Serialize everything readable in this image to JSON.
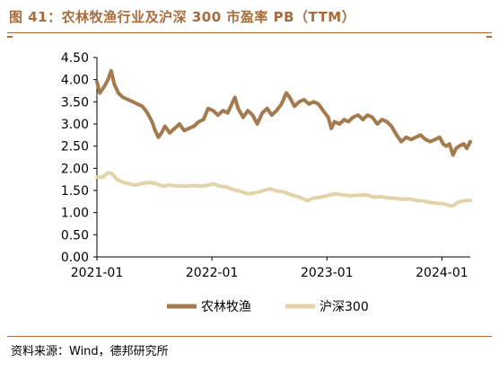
{
  "figure": {
    "title": "图 41：农林牧渔行业及沪深 300 市盈率 PB（TTM）",
    "source": "资料来源：Wind，德邦研究所"
  },
  "colors": {
    "accent": "#a86c3a",
    "series_1": "#a47a4f",
    "series_2": "#e3d3a8"
  },
  "chart_data": {
    "type": "line",
    "title": "",
    "xlabel": "",
    "ylabel": "",
    "x_range": [
      "2021-01-01",
      "2024-03-31"
    ],
    "ylim": [
      0,
      4.5
    ],
    "y_ticks": [
      "0.00",
      "0.50",
      "1.00",
      "1.50",
      "2.00",
      "2.50",
      "3.00",
      "3.50",
      "4.00",
      "4.50"
    ],
    "x_ticks": [
      {
        "label": "2021-01",
        "date": "2021-01-01"
      },
      {
        "label": "2022-01",
        "date": "2022-01-01"
      },
      {
        "label": "2023-01",
        "date": "2023-01-01"
      },
      {
        "label": "2024-01",
        "date": "2024-01-01"
      }
    ],
    "grid": false,
    "legend_position": "bottom-center",
    "series": [
      {
        "name": "农林牧渔",
        "points": [
          [
            "2021-01-01",
            3.95
          ],
          [
            "2021-01-10",
            3.7
          ],
          [
            "2021-01-25",
            3.85
          ],
          [
            "2021-02-05",
            4.0
          ],
          [
            "2021-02-15",
            4.2
          ],
          [
            "2021-02-25",
            3.9
          ],
          [
            "2021-03-10",
            3.7
          ],
          [
            "2021-03-25",
            3.6
          ],
          [
            "2021-04-10",
            3.55
          ],
          [
            "2021-04-25",
            3.5
          ],
          [
            "2021-05-10",
            3.45
          ],
          [
            "2021-05-25",
            3.4
          ],
          [
            "2021-06-10",
            3.25
          ],
          [
            "2021-06-25",
            3.05
          ],
          [
            "2021-07-05",
            2.85
          ],
          [
            "2021-07-15",
            2.7
          ],
          [
            "2021-07-25",
            2.8
          ],
          [
            "2021-08-05",
            2.95
          ],
          [
            "2021-08-20",
            2.8
          ],
          [
            "2021-09-05",
            2.9
          ],
          [
            "2021-09-20",
            3.0
          ],
          [
            "2021-10-05",
            2.85
          ],
          [
            "2021-10-20",
            2.9
          ],
          [
            "2021-11-05",
            2.95
          ],
          [
            "2021-11-20",
            3.05
          ],
          [
            "2021-12-05",
            3.1
          ],
          [
            "2021-12-20",
            3.35
          ],
          [
            "2022-01-05",
            3.3
          ],
          [
            "2022-01-20",
            3.2
          ],
          [
            "2022-02-05",
            3.3
          ],
          [
            "2022-02-20",
            3.25
          ],
          [
            "2022-03-05",
            3.45
          ],
          [
            "2022-03-15",
            3.6
          ],
          [
            "2022-03-25",
            3.35
          ],
          [
            "2022-04-10",
            3.15
          ],
          [
            "2022-04-25",
            3.3
          ],
          [
            "2022-05-10",
            3.2
          ],
          [
            "2022-05-25",
            3.0
          ],
          [
            "2022-06-10",
            3.25
          ],
          [
            "2022-06-25",
            3.35
          ],
          [
            "2022-07-10",
            3.2
          ],
          [
            "2022-07-25",
            3.3
          ],
          [
            "2022-08-10",
            3.45
          ],
          [
            "2022-08-25",
            3.7
          ],
          [
            "2022-09-05",
            3.6
          ],
          [
            "2022-09-20",
            3.4
          ],
          [
            "2022-10-05",
            3.5
          ],
          [
            "2022-10-20",
            3.55
          ],
          [
            "2022-11-05",
            3.45
          ],
          [
            "2022-11-20",
            3.5
          ],
          [
            "2022-12-05",
            3.45
          ],
          [
            "2022-12-20",
            3.3
          ],
          [
            "2023-01-05",
            3.15
          ],
          [
            "2023-01-15",
            2.9
          ],
          [
            "2023-01-25",
            3.05
          ],
          [
            "2023-02-10",
            3.0
          ],
          [
            "2023-02-25",
            3.1
          ],
          [
            "2023-03-10",
            3.05
          ],
          [
            "2023-03-25",
            3.15
          ],
          [
            "2023-04-10",
            3.2
          ],
          [
            "2023-04-25",
            3.1
          ],
          [
            "2023-05-10",
            3.2
          ],
          [
            "2023-05-25",
            3.15
          ],
          [
            "2023-06-10",
            3.0
          ],
          [
            "2023-06-25",
            3.1
          ],
          [
            "2023-07-10",
            3.05
          ],
          [
            "2023-07-25",
            2.95
          ],
          [
            "2023-08-10",
            2.75
          ],
          [
            "2023-08-25",
            2.6
          ],
          [
            "2023-09-10",
            2.7
          ],
          [
            "2023-09-25",
            2.65
          ],
          [
            "2023-10-10",
            2.7
          ],
          [
            "2023-10-25",
            2.75
          ],
          [
            "2023-11-10",
            2.65
          ],
          [
            "2023-11-25",
            2.6
          ],
          [
            "2023-12-10",
            2.65
          ],
          [
            "2023-12-25",
            2.7
          ],
          [
            "2024-01-05",
            2.55
          ],
          [
            "2024-01-15",
            2.5
          ],
          [
            "2024-01-25",
            2.55
          ],
          [
            "2024-02-05",
            2.3
          ],
          [
            "2024-02-15",
            2.45
          ],
          [
            "2024-02-25",
            2.5
          ],
          [
            "2024-03-10",
            2.55
          ],
          [
            "2024-03-20",
            2.45
          ],
          [
            "2024-03-31",
            2.6
          ]
        ]
      },
      {
        "name": "沪深300",
        "points": [
          [
            "2021-01-01",
            1.8
          ],
          [
            "2021-01-20",
            1.8
          ],
          [
            "2021-02-05",
            1.9
          ],
          [
            "2021-02-18",
            1.88
          ],
          [
            "2021-03-05",
            1.75
          ],
          [
            "2021-03-25",
            1.68
          ],
          [
            "2021-04-15",
            1.65
          ],
          [
            "2021-05-05",
            1.62
          ],
          [
            "2021-05-25",
            1.66
          ],
          [
            "2021-06-15",
            1.68
          ],
          [
            "2021-07-05",
            1.66
          ],
          [
            "2021-07-28",
            1.6
          ],
          [
            "2021-08-20",
            1.62
          ],
          [
            "2021-09-15",
            1.6
          ],
          [
            "2021-10-10",
            1.6
          ],
          [
            "2021-11-05",
            1.61
          ],
          [
            "2021-12-01",
            1.6
          ],
          [
            "2021-12-20",
            1.62
          ],
          [
            "2022-01-05",
            1.65
          ],
          [
            "2022-01-25",
            1.6
          ],
          [
            "2022-02-15",
            1.58
          ],
          [
            "2022-03-10",
            1.52
          ],
          [
            "2022-04-05",
            1.47
          ],
          [
            "2022-04-27",
            1.42
          ],
          [
            "2022-05-20",
            1.45
          ],
          [
            "2022-06-15",
            1.5
          ],
          [
            "2022-07-05",
            1.54
          ],
          [
            "2022-07-25",
            1.49
          ],
          [
            "2022-08-15",
            1.47
          ],
          [
            "2022-09-10",
            1.4
          ],
          [
            "2022-10-05",
            1.35
          ],
          [
            "2022-10-31",
            1.27
          ],
          [
            "2022-11-20",
            1.33
          ],
          [
            "2022-12-15",
            1.35
          ],
          [
            "2023-01-10",
            1.4
          ],
          [
            "2023-01-30",
            1.42
          ],
          [
            "2023-02-20",
            1.4
          ],
          [
            "2023-03-15",
            1.38
          ],
          [
            "2023-04-10",
            1.39
          ],
          [
            "2023-05-05",
            1.4
          ],
          [
            "2023-05-30",
            1.35
          ],
          [
            "2023-06-20",
            1.36
          ],
          [
            "2023-07-15",
            1.33
          ],
          [
            "2023-08-10",
            1.32
          ],
          [
            "2023-08-30",
            1.3
          ],
          [
            "2023-09-20",
            1.31
          ],
          [
            "2023-10-15",
            1.27
          ],
          [
            "2023-11-05",
            1.26
          ],
          [
            "2023-11-25",
            1.23
          ],
          [
            "2023-12-15",
            1.21
          ],
          [
            "2024-01-05",
            1.2
          ],
          [
            "2024-01-20",
            1.17
          ],
          [
            "2024-02-05",
            1.15
          ],
          [
            "2024-02-20",
            1.23
          ],
          [
            "2024-03-05",
            1.26
          ],
          [
            "2024-03-20",
            1.27
          ],
          [
            "2024-03-31",
            1.27
          ]
        ]
      }
    ]
  }
}
